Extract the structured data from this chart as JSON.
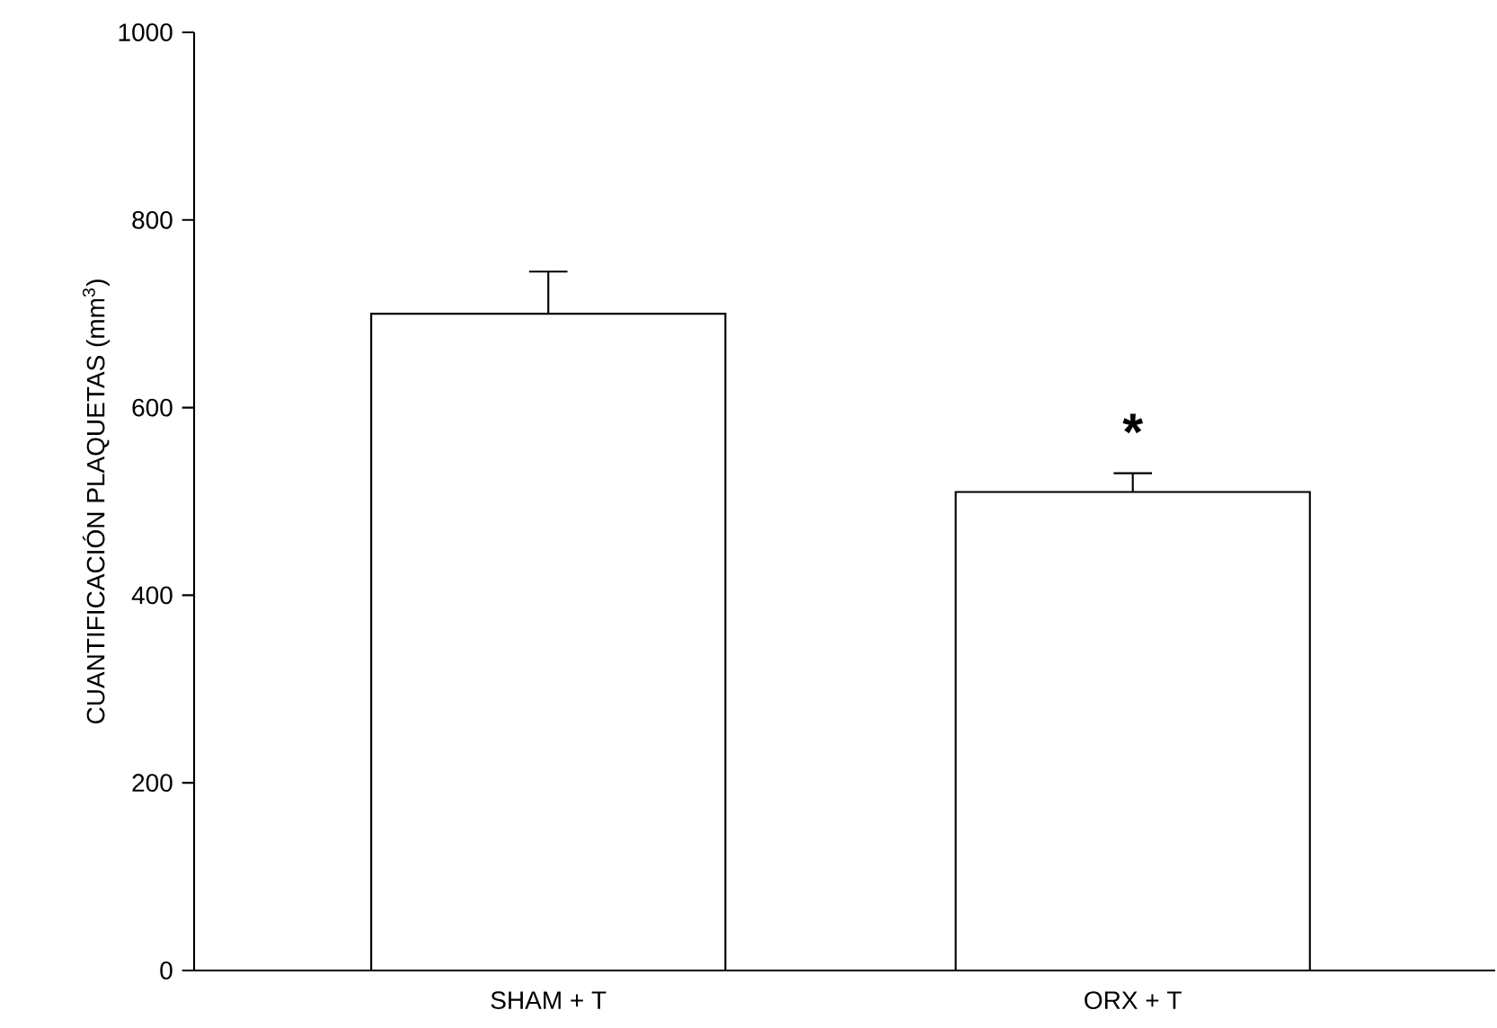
{
  "chart_data": {
    "type": "bar",
    "ylabel": "CUANTIFICACIÓN PLAQUETAS (mm$^{3}$)",
    "categories": [
      "SHAM + T",
      "ORX + T"
    ],
    "values": [
      700,
      510
    ],
    "errors": [
      45,
      20
    ],
    "color": "#000000",
    "ylim": [
      0,
      1000
    ],
    "yticks": [
      0,
      200,
      400,
      600,
      800,
      1000
    ],
    "annotations": [
      "*"
    ]
  }
}
